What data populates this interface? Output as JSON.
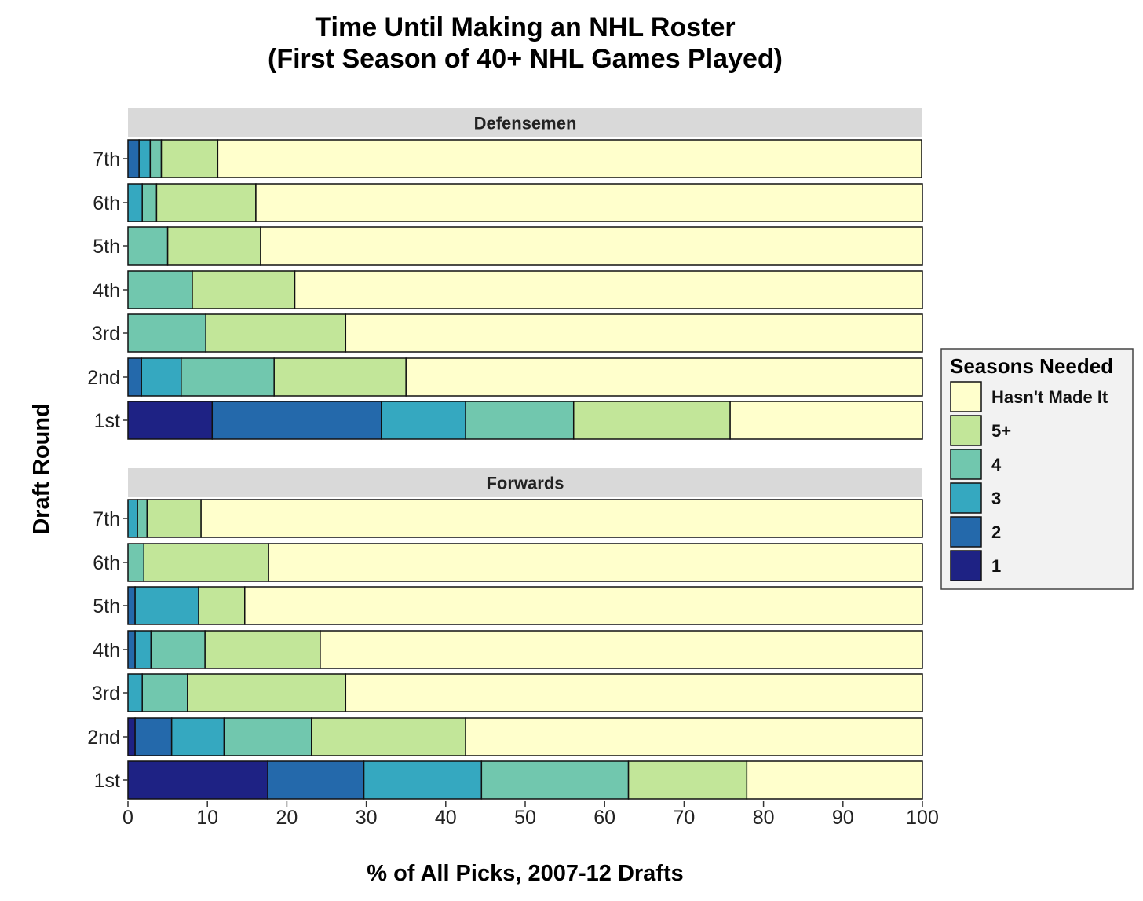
{
  "chart_data": {
    "type": "bar",
    "orientation": "horizontal",
    "stacked": true,
    "title": "Time Until Making an NHL Roster",
    "subtitle": "(First Season of 40+ NHL Games Played)",
    "xlabel": "% of All Picks, 2007-12 Drafts",
    "ylabel": "Draft Round",
    "xlim": [
      0,
      100
    ],
    "x_ticks": [
      "0",
      "10",
      "20",
      "30",
      "40",
      "50",
      "60",
      "70",
      "80",
      "90",
      "100"
    ],
    "categories": [
      "7th",
      "6th",
      "5th",
      "4th",
      "3rd",
      "2nd",
      "1st"
    ],
    "legend": {
      "title": "Seasons Needed",
      "position": "right",
      "items": [
        {
          "key": "hasnt",
          "label": "Hasn't Made It",
          "color": "#FFFFCC"
        },
        {
          "key": "s5",
          "label": "5+",
          "color": "#C2E699"
        },
        {
          "key": "s4",
          "label": "4",
          "color": "#71C7AE"
        },
        {
          "key": "s3",
          "label": "3",
          "color": "#35A8C0"
        },
        {
          "key": "s2",
          "label": "2",
          "color": "#2469AB"
        },
        {
          "key": "s1",
          "label": "1",
          "color": "#1E2284"
        }
      ]
    },
    "stack_order": [
      "1",
      "2",
      "3",
      "4",
      "5+",
      "Hasn't Made It"
    ],
    "panels": [
      {
        "label": "Defensemen",
        "bars": [
          {
            "round": "7th",
            "values": {
              "1": 0,
              "2": 1.4,
              "3": 1.4,
              "4": 0,
              "5+": 7.1,
              "Hasn't Made It": 88.6,
              "extra": [
                {
                  "color": "#71C7AE",
                  "v": 1.4
                }
              ]
            }
          },
          {
            "round": "6th",
            "values": {
              "1": 0,
              "2": 0,
              "3": 1.8,
              "4": 1.8,
              "5+": 12.5,
              "Hasn't Made It": 83.9
            }
          },
          {
            "round": "5th",
            "values": {
              "1": 0,
              "2": 0,
              "3": 0,
              "4": 5.0,
              "5+": 11.7,
              "Hasn't Made It": 83.3
            }
          },
          {
            "round": "4th",
            "values": {
              "1": 0,
              "2": 0,
              "3": 0,
              "4": 8.1,
              "5+": 12.9,
              "Hasn't Made It": 79.0
            }
          },
          {
            "round": "3rd",
            "values": {
              "1": 0,
              "2": 0,
              "3": 0,
              "4": 9.8,
              "5+": 17.6,
              "Hasn't Made It": 72.6
            }
          },
          {
            "round": "2nd",
            "values": {
              "1": 0,
              "2": 1.7,
              "3": 5.0,
              "4": 11.7,
              "5+": 16.6,
              "Hasn't Made It": 65.0
            }
          },
          {
            "round": "1st",
            "values": {
              "1": 10.6,
              "2": 21.3,
              "3": 10.6,
              "4": 13.6,
              "5+": 19.7,
              "Hasn't Made It": 24.2
            }
          }
        ]
      },
      {
        "label": "Forwards",
        "bars": [
          {
            "round": "7th",
            "values": {
              "1": 0,
              "2": 0,
              "3": 1.2,
              "4": 1.2,
              "5+": 6.8,
              "Hasn't Made It": 90.8
            }
          },
          {
            "round": "6th",
            "values": {
              "1": 0,
              "2": 0,
              "3": 0,
              "4": 2.0,
              "5+": 15.7,
              "Hasn't Made It": 82.3
            }
          },
          {
            "round": "5th",
            "values": {
              "1": 0,
              "2": 0.9,
              "3": 8.0,
              "4": 0,
              "5+": 5.8,
              "Hasn't Made It": 85.3
            }
          },
          {
            "round": "4th",
            "values": {
              "1": 0,
              "2": 0.9,
              "3": 2.0,
              "4": 6.8,
              "5+": 14.5,
              "Hasn't Made It": 75.8
            }
          },
          {
            "round": "3rd",
            "values": {
              "1": 0,
              "2": 0,
              "3": 1.8,
              "4": 5.7,
              "5+": 19.9,
              "Hasn't Made It": 72.6
            }
          },
          {
            "round": "2nd",
            "values": {
              "1": 0.9,
              "2": 4.6,
              "3": 6.6,
              "4": 11.0,
              "5+": 19.4,
              "Hasn't Made It": 57.5
            }
          },
          {
            "round": "1st",
            "values": {
              "1": 17.6,
              "2": 12.1,
              "3": 14.8,
              "4": 18.5,
              "5+": 14.9,
              "Hasn't Made It": 22.1
            }
          }
        ]
      }
    ]
  }
}
